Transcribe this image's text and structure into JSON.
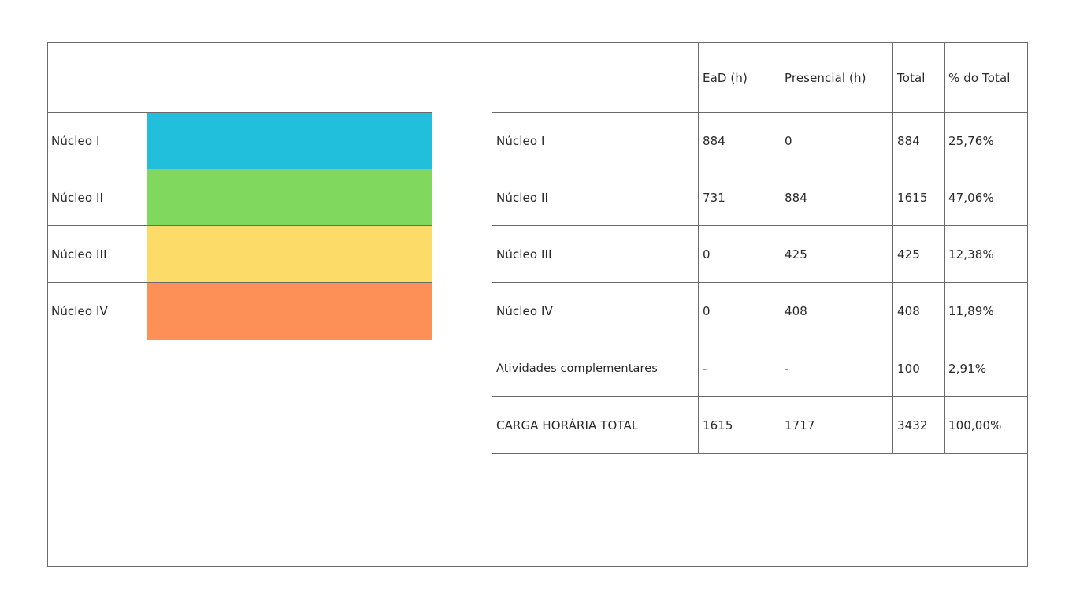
{
  "legend": {
    "rows": [
      {
        "label": "Núcleo I",
        "color": "#22bfdd"
      },
      {
        "label": "Núcleo II",
        "color": "#80d85e"
      },
      {
        "label": "Núcleo III",
        "color": "#fcdb69"
      },
      {
        "label": "Núcleo IV",
        "color": "#fd9056"
      }
    ]
  },
  "table": {
    "headers": [
      "",
      "EaD (h)",
      "Presencial (h)",
      "Total",
      "% do Total"
    ],
    "rows": [
      [
        "Núcleo I",
        "884",
        "0",
        "884",
        "25,76%"
      ],
      [
        "Núcleo II",
        "731",
        "884",
        "1615",
        "47,06%"
      ],
      [
        "Núcleo III",
        "0",
        "425",
        "425",
        "12,38%"
      ],
      [
        "Núcleo IV",
        "0",
        "408",
        "408",
        "11,89%"
      ],
      [
        "Atividades complementares",
        "-",
        "-",
        "100",
        "2,91%"
      ],
      [
        "CARGA HORÁRIA TOTAL",
        "1615",
        "1717",
        "3432",
        "100,00%"
      ]
    ]
  }
}
